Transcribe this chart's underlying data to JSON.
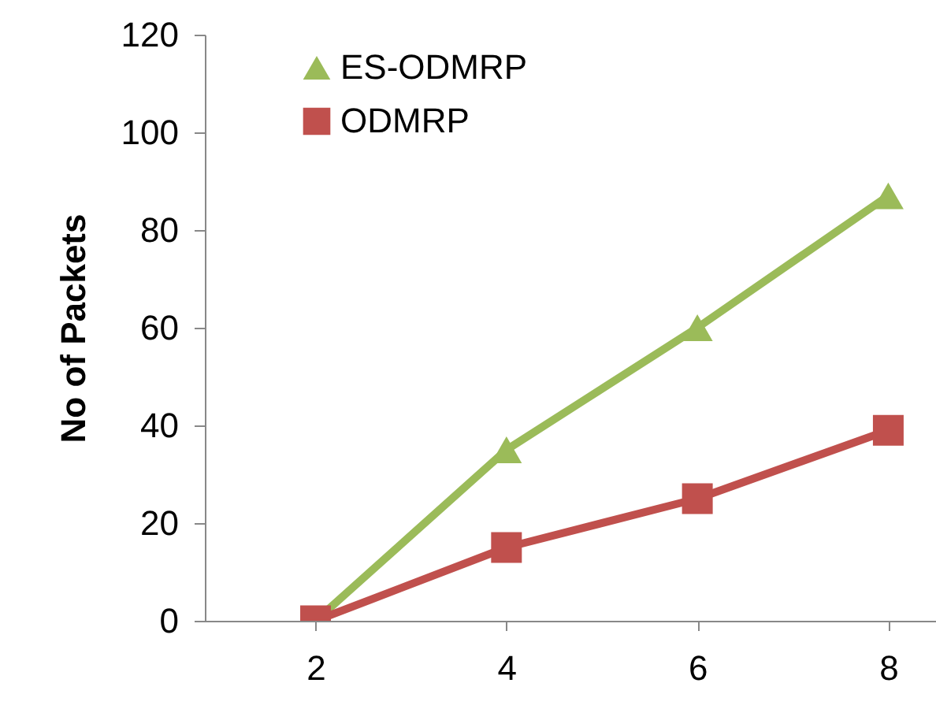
{
  "chart_data": {
    "type": "line",
    "ylabel": "No of Packets",
    "x": [
      2,
      4,
      6,
      8
    ],
    "series": [
      {
        "name": "ES-ODMRP",
        "color": "#9bbb59",
        "marker": "triangle",
        "values": [
          0,
          35,
          60,
          87
        ]
      },
      {
        "name": "ODMRP",
        "color": "#c0504d",
        "marker": "square",
        "values": [
          0,
          15,
          25,
          39
        ]
      }
    ],
    "xlim": [
      0.84,
      8.5
    ],
    "xticks": [
      2,
      4,
      6,
      8
    ],
    "ylim": [
      0,
      120
    ],
    "yticks": [
      0,
      20,
      40,
      60,
      80,
      100,
      120
    ],
    "grid": false,
    "legend": "top left",
    "line_style": "solid"
  }
}
